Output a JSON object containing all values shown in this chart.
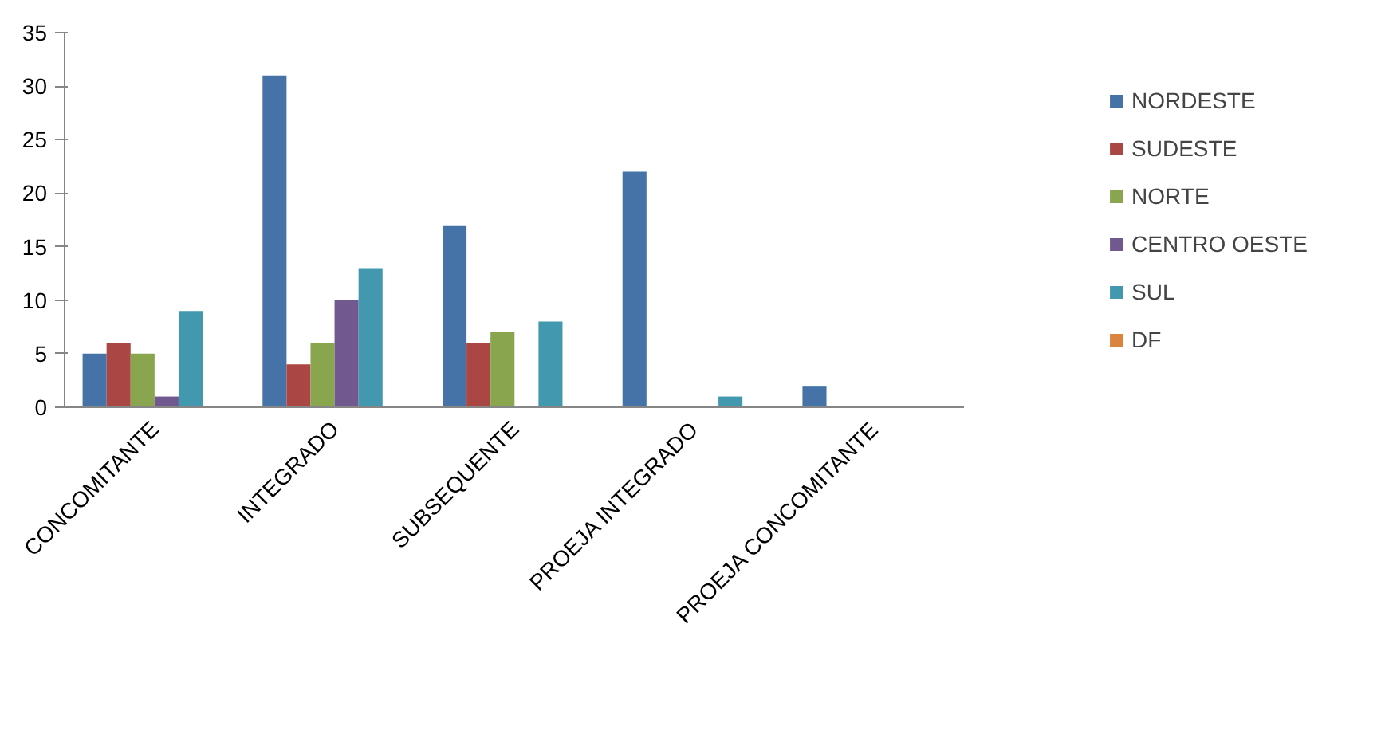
{
  "chart_data": {
    "type": "bar",
    "categories": [
      "CONCOMITANTE",
      "INTEGRADO",
      "SUBSEQUENTE",
      "PROEJA INTEGRADO",
      "PROEJA CONCOMITANTE"
    ],
    "series": [
      {
        "name": "NORDESTE",
        "color": "#4572a7",
        "values": [
          5,
          31,
          17,
          22,
          2
        ]
      },
      {
        "name": "SUDESTE",
        "color": "#aa4643",
        "values": [
          6,
          4,
          6,
          0,
          0
        ]
      },
      {
        "name": "NORTE",
        "color": "#89a54e",
        "values": [
          5,
          6,
          7,
          0,
          0
        ]
      },
      {
        "name": "CENTRO OESTE",
        "color": "#71588f",
        "values": [
          1,
          10,
          0,
          0,
          0
        ]
      },
      {
        "name": "SUL",
        "color": "#4198af",
        "values": [
          9,
          13,
          8,
          1,
          0
        ]
      },
      {
        "name": "DF",
        "color": "#db843d",
        "values": [
          0,
          0,
          0,
          0,
          0
        ]
      }
    ],
    "ylim": [
      0,
      35
    ],
    "yticks": [
      0,
      5,
      10,
      15,
      20,
      25,
      30,
      35
    ],
    "grid": false,
    "legend": "right"
  }
}
